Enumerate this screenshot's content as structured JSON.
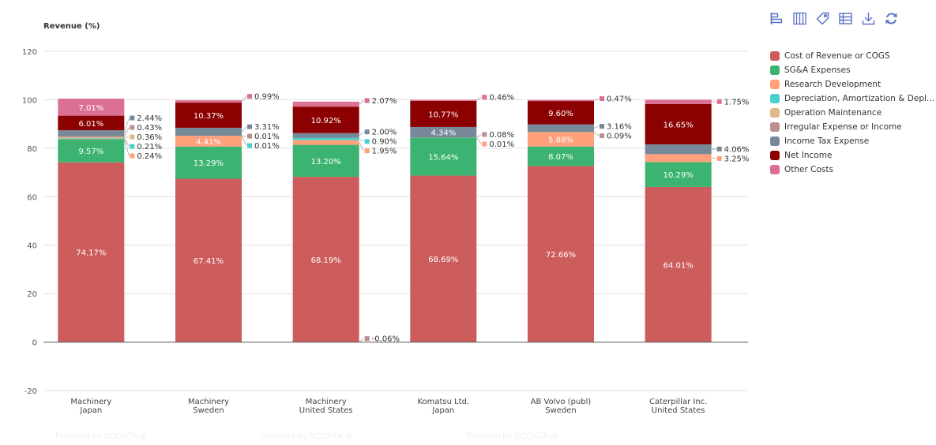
{
  "toolbar": {
    "icons": [
      "horizontal-bar-icon",
      "stacked-bar-icon",
      "tag-icon",
      "table-icon",
      "download-icon",
      "refresh-icon"
    ]
  },
  "watermark": "Powered by SCDATA.ai",
  "chart_data": {
    "type": "bar",
    "stacked": true,
    "title": "",
    "ylabel": "Revenue (%)",
    "xlabel": "",
    "ylim": [
      -20,
      120
    ],
    "yticks": [
      -20,
      0,
      20,
      40,
      60,
      80,
      100,
      120
    ],
    "grid": true,
    "legend_position": "right",
    "categories": [
      [
        "Machinery",
        "Japan"
      ],
      [
        "Machinery",
        "Sweden"
      ],
      [
        "Machinery",
        "United States"
      ],
      [
        "Komatsu Ltd.",
        "Japan"
      ],
      [
        "AB Volvo (publ)",
        "Sweden"
      ],
      [
        "Caterpillar Inc.",
        "United States"
      ]
    ],
    "series": [
      {
        "name": "Cost of Revenue or COGS",
        "color": "#cd5c5c",
        "values": [
          74.17,
          67.41,
          68.19,
          68.69,
          72.66,
          64.01
        ]
      },
      {
        "name": "SG&A Expenses",
        "color": "#3cb371",
        "values": [
          9.57,
          13.29,
          13.2,
          15.64,
          8.07,
          10.29
        ]
      },
      {
        "name": "Research Development",
        "color": "#ffa07a",
        "values": [
          0.24,
          4.41,
          1.95,
          0.01,
          5.88,
          3.25
        ]
      },
      {
        "name": "Depreciation, Amortization & Depl...",
        "color": "#48d1cc",
        "values": [
          0.21,
          0.01,
          0.9,
          0.0,
          0.0,
          0.0
        ]
      },
      {
        "name": "Operation Maintenance",
        "color": "#deb887",
        "values": [
          0.36,
          0.0,
          0.0,
          0.0,
          0.0,
          0.0
        ]
      },
      {
        "name": "Irregular Expense or Income",
        "color": "#bc8f8f",
        "values": [
          0.43,
          0.01,
          -0.06,
          0.08,
          0.09,
          0.0
        ]
      },
      {
        "name": "Income Tax Expense",
        "color": "#778899",
        "values": [
          2.44,
          3.31,
          2.0,
          4.34,
          3.16,
          4.06
        ]
      },
      {
        "name": "Net Income",
        "color": "#8b0000",
        "values": [
          6.01,
          10.37,
          10.92,
          10.77,
          9.6,
          16.65
        ]
      },
      {
        "name": "Other Costs",
        "color": "#db7093",
        "values": [
          7.01,
          0.99,
          2.07,
          0.46,
          0.47,
          1.75
        ]
      }
    ]
  }
}
